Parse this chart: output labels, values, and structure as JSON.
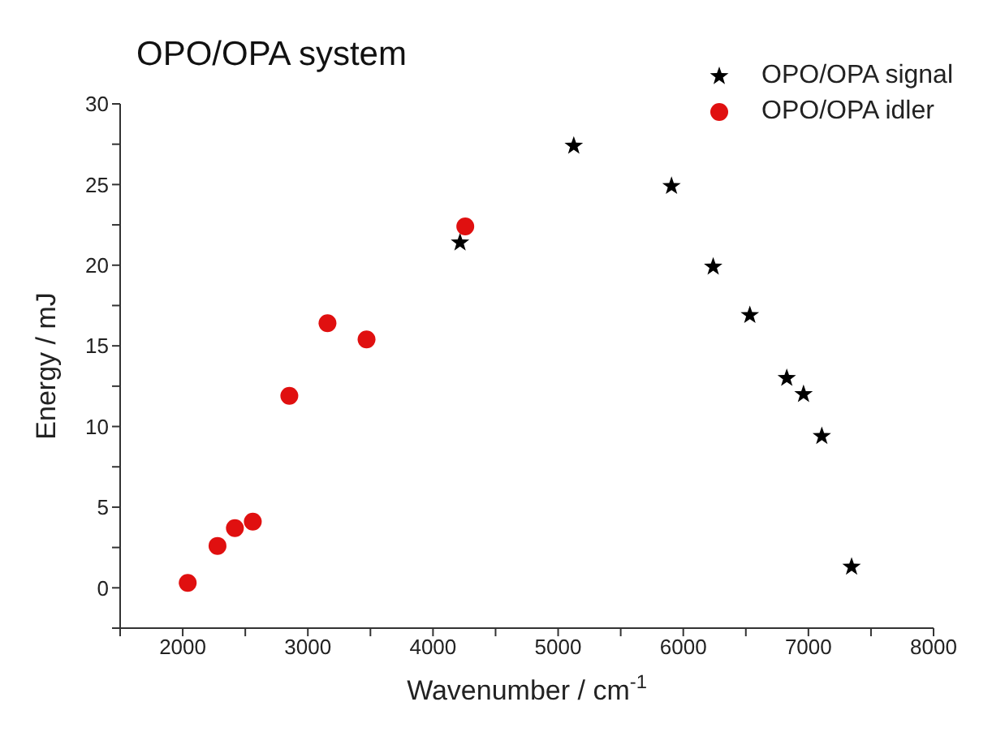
{
  "chart_data": {
    "type": "scatter",
    "title": "OPO/OPA system",
    "xlabel": "Wavenumber / cm$^{-1}$",
    "ylabel": "Energy / mJ",
    "xlim": [
      1500,
      8000
    ],
    "ylim": [
      -2.5,
      30
    ],
    "xticks": [
      {
        "value": 1500,
        "label": null
      },
      2000,
      {
        "value": 2500,
        "label": null
      },
      3000,
      {
        "value": 3500,
        "label": null
      },
      4000,
      {
        "value": 4500,
        "label": null
      },
      5000,
      {
        "value": 5500,
        "label": null
      },
      6000,
      {
        "value": 6500,
        "label": null
      },
      7000,
      {
        "value": 7500,
        "label": null
      },
      8000
    ],
    "yticks": [
      {
        "value": -2.5,
        "label": null
      },
      0,
      {
        "value": 2.5,
        "label": null
      },
      5,
      {
        "value": 7.5,
        "label": null
      },
      10,
      {
        "value": 12.5,
        "label": null
      },
      15,
      {
        "value": 17.5,
        "label": null
      },
      20,
      {
        "value": 22.5,
        "label": null
      },
      25,
      {
        "value": 27.5,
        "label": null
      },
      30
    ],
    "grid": false,
    "legend": "top right",
    "series": [
      {
        "name": "OPO/OPA signal",
        "color": "#000000",
        "marker": "star",
        "x": [
          4216,
          5125,
          5906,
          6239,
          6532,
          6827,
          6961,
          7107,
          7345
        ],
        "values": [
          21.4,
          27.4,
          24.9,
          19.9,
          16.9,
          13,
          12,
          9.4,
          1.3
        ]
      },
      {
        "name": "OPO/OPA idler",
        "color": "#e01010",
        "marker": "circle",
        "x": [
          2040,
          2278,
          2417,
          2560,
          2852,
          3157,
          3469,
          4258
        ],
        "values": [
          0.3,
          2.6,
          3.7,
          4.1,
          11.9,
          16.4,
          15.4,
          22.4
        ]
      }
    ]
  }
}
